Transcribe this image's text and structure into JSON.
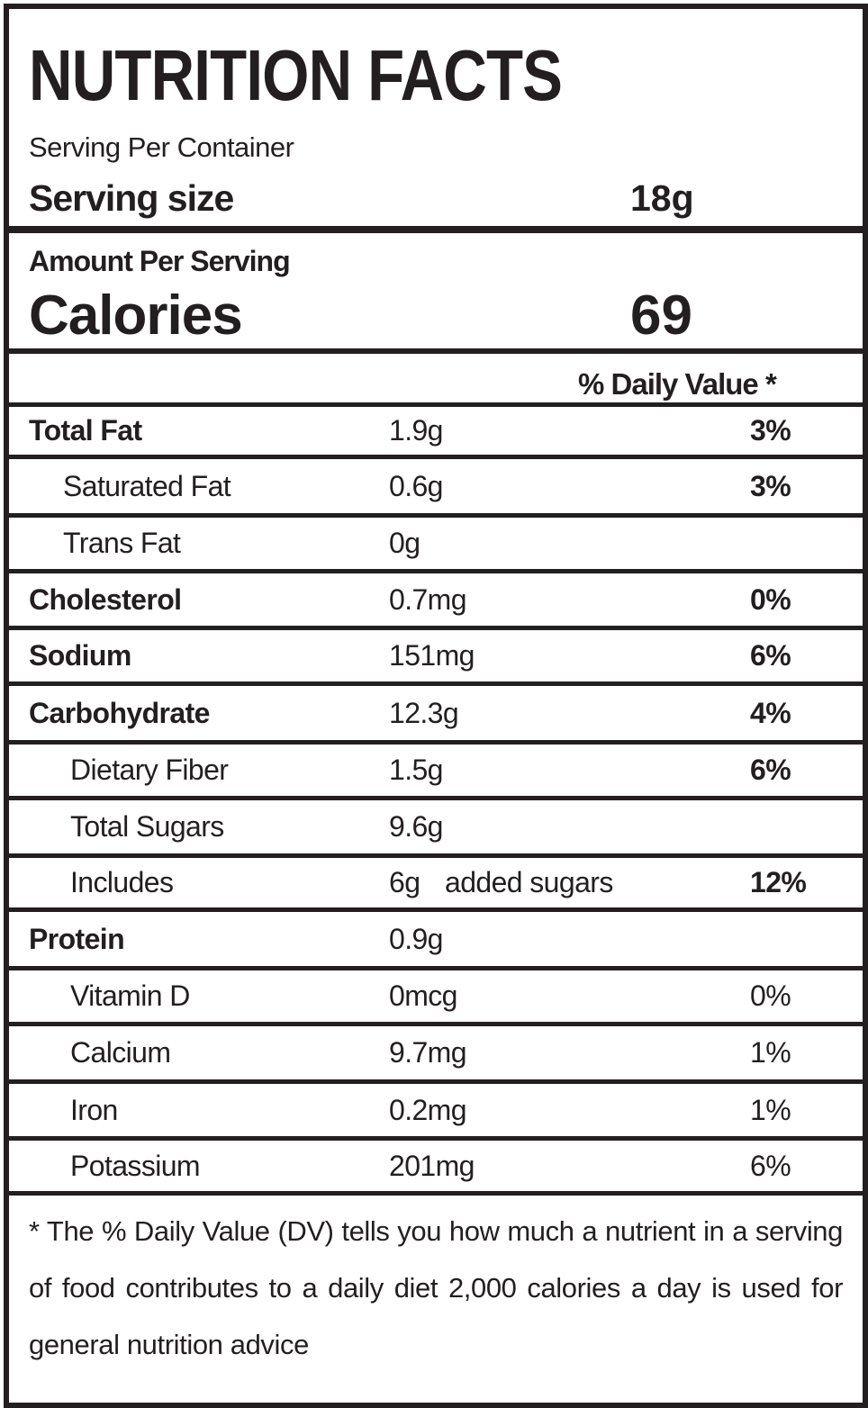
{
  "header": {
    "title": "NUTRITION FACTS",
    "servings_label": "Serving Per Container",
    "serving_size_label": "Serving size",
    "serving_size": "18g",
    "amount_label": "Amount Per Serving",
    "calories_label": "Calories",
    "calories": "69",
    "dv_header": "% Daily Value *"
  },
  "table": {
    "rows": [
      {
        "name": "Total Fat",
        "amount": "1.9g",
        "dv": "3%"
      },
      {
        "name": "Saturated Fat",
        "amount": "0.6g",
        "dv": "3%"
      },
      {
        "name": "Trans Fat",
        "amount": "0g"
      },
      {
        "name": "Cholesterol",
        "amount": "0.7mg",
        "dv": "0%"
      },
      {
        "name": "Sodium",
        "amount": "151mg",
        "dv": "6%"
      },
      {
        "name": "Carbohydrate",
        "amount": "12.3g",
        "dv": "4%"
      },
      {
        "name": "Dietary Fiber",
        "amount": "1.5g",
        "dv": "6%"
      },
      {
        "name": "Total Sugars",
        "amount": "9.6g"
      },
      {
        "name": "Includes",
        "amount": "6g",
        "note": "added sugars",
        "dv": "12%"
      },
      {
        "name": "Protein",
        "amount": "0.9g"
      },
      {
        "name": "Vitamin D",
        "amount": "0mcg",
        "dv": "0%"
      },
      {
        "name": "Calcium",
        "amount": "9.7mg",
        "dv": "1%"
      },
      {
        "name": "Iron",
        "amount": "0.2mg",
        "dv": "1%"
      },
      {
        "name": "Potassium",
        "amount": "201mg",
        "dv": "6%"
      }
    ]
  },
  "footnote": "* The % Daily Value (DV) tells you how much a nutrient in a serving of food contributes to a daily diet 2,000 calories a day is used for general nutrition advice"
}
